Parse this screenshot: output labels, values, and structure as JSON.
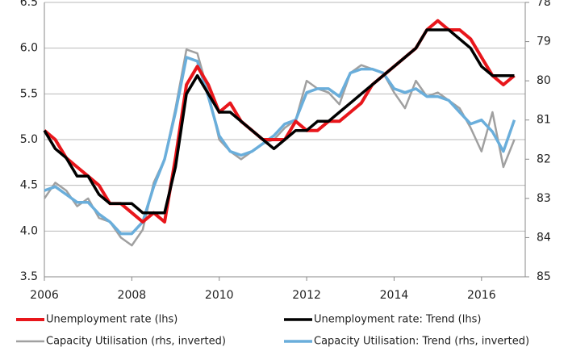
{
  "chart_data": {
    "type": "line",
    "x": [
      2006,
      2006.25,
      2006.5,
      2006.75,
      2007,
      2007.25,
      2007.5,
      2007.75,
      2008,
      2008.25,
      2008.5,
      2008.75,
      2009,
      2009.25,
      2009.5,
      2009.75,
      2010,
      2010.25,
      2010.5,
      2010.75,
      2011,
      2011.25,
      2011.5,
      2011.75,
      2012,
      2012.25,
      2012.5,
      2012.75,
      2013,
      2013.25,
      2013.5,
      2013.75,
      2014,
      2014.25,
      2014.5,
      2014.75,
      2015,
      2015.25,
      2015.5,
      2015.75,
      2016,
      2016.25,
      2016.5,
      2016.75
    ],
    "xlim": [
      2006,
      2017
    ],
    "xticks": [
      2006,
      2008,
      2010,
      2012,
      2014,
      2016
    ],
    "ylim": [
      3.5,
      6.5
    ],
    "yticks": [
      3.5,
      {
        "value": 4,
        "label": "4.0"
      },
      4.5,
      {
        "value": 5,
        "label": "5.0"
      },
      5.5,
      {
        "value": 6,
        "label": "6.0"
      },
      6.5
    ],
    "y2lim": [
      85,
      78
    ],
    "y2ticks": [
      78,
      79,
      80,
      81,
      82,
      83,
      84,
      85
    ],
    "grid": true,
    "series": [
      {
        "name": "Unemployment rate (lhs)",
        "color": "#e8161b",
        "width": 4,
        "values": [
          5.1,
          5.0,
          4.8,
          4.7,
          4.6,
          4.5,
          4.3,
          4.3,
          4.2,
          4.1,
          4.2,
          4.1,
          4.8,
          5.6,
          5.8,
          5.6,
          5.3,
          5.4,
          5.2,
          5.1,
          5.0,
          5.0,
          5.0,
          5.2,
          5.1,
          5.1,
          5.2,
          5.2,
          5.3,
          5.4,
          5.6,
          5.7,
          5.8,
          5.9,
          6.0,
          6.2,
          6.3,
          6.2,
          6.2,
          6.1,
          5.9,
          5.7,
          5.6,
          5.7
        ]
      },
      {
        "name": "Unemployment rate: Trend (lhs)",
        "color": "#000000",
        "width": 3.5,
        "values": [
          5.1,
          4.9,
          4.8,
          4.6,
          4.6,
          4.4,
          4.3,
          4.3,
          4.3,
          4.2,
          4.2,
          4.2,
          4.7,
          5.5,
          5.7,
          5.5,
          5.3,
          5.3,
          5.2,
          5.1,
          5.0,
          4.9,
          5.0,
          5.1,
          5.1,
          5.2,
          5.2,
          5.3,
          5.4,
          5.5,
          5.6,
          5.7,
          5.8,
          5.9,
          6.0,
          6.2,
          6.2,
          6.2,
          6.1,
          6.0,
          5.8,
          5.7,
          5.7,
          5.7
        ]
      },
      {
        "name": "Capacity Utilisation (rhs, inverted)",
        "color": "#a0a0a0",
        "width": 2.5,
        "axis": "y2",
        "values": [
          83,
          82.6,
          82.8,
          83.2,
          83.0,
          83.5,
          83.6,
          84.0,
          84.2,
          83.8,
          82.6,
          82.0,
          80.7,
          79.2,
          79.3,
          80.3,
          81.5,
          81.8,
          82.0,
          81.8,
          81.6,
          81.5,
          81.2,
          81.0,
          80.0,
          80.2,
          80.3,
          80.6,
          79.8,
          79.6,
          79.7,
          79.8,
          80.3,
          80.7,
          80.0,
          80.4,
          80.3,
          80.5,
          80.7,
          81.2,
          81.8,
          80.8,
          82.2,
          81.5
        ]
      },
      {
        "name": "Capacity Utilisation: Trend (rhs, inverted)",
        "color": "#6aaedb",
        "width": 3.5,
        "axis": "y2",
        "values": [
          82.8,
          82.7,
          82.9,
          83.1,
          83.1,
          83.4,
          83.6,
          83.9,
          83.9,
          83.6,
          82.7,
          82.0,
          80.8,
          79.4,
          79.5,
          80.4,
          81.4,
          81.8,
          81.9,
          81.8,
          81.6,
          81.4,
          81.1,
          81.0,
          80.3,
          80.2,
          80.2,
          80.4,
          79.8,
          79.7,
          79.7,
          79.8,
          80.2,
          80.3,
          80.2,
          80.4,
          80.4,
          80.5,
          80.8,
          81.1,
          81.0,
          81.3,
          81.8,
          81.0
        ]
      }
    ]
  }
}
